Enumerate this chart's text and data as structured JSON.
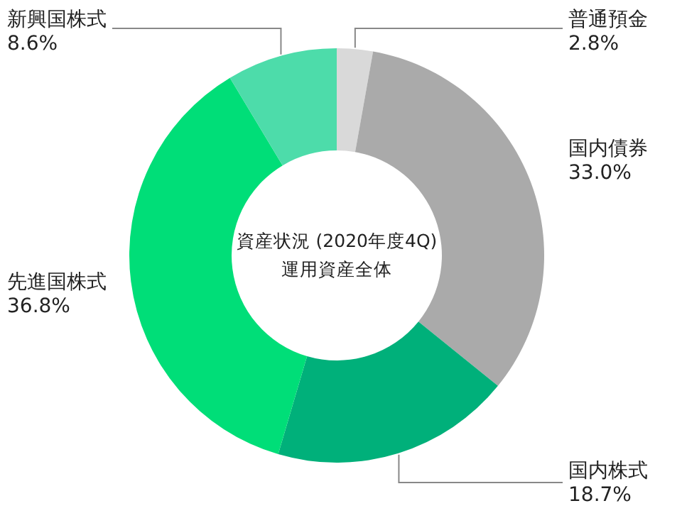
{
  "chart_data": {
    "type": "donut",
    "title": "資産状況 (2020年度4Q)",
    "subtitle": "運用資産全体",
    "categories": [
      "普通預金",
      "国内債券",
      "国内株式",
      "先進国株式",
      "新興国株式"
    ],
    "values": [
      2.8,
      33.0,
      18.7,
      36.8,
      8.6
    ],
    "value_labels": [
      "2.8%",
      "33.0%",
      "18.7%",
      "36.8%",
      "8.6%"
    ],
    "colors": [
      "#d9d9d9",
      "#aaaaaa",
      "#00b07a",
      "#00de78",
      "#4ddcaa"
    ]
  }
}
